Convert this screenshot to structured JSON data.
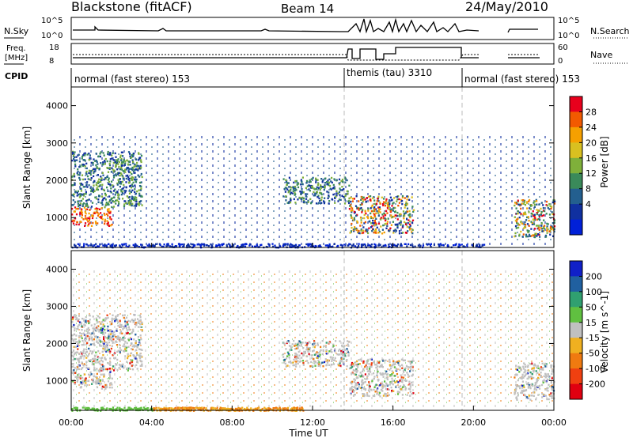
{
  "header": {
    "station": "Blackstone (fitACF)",
    "beam": "Beam 14",
    "date": "24/May/2010"
  },
  "top_panels": {
    "nsky_label": "N.Sky",
    "nsearch_label": "N.Search",
    "nsky_ticks": [
      "10^5",
      "10^0"
    ],
    "nsearch_ticks": [
      "10^5",
      "10^0"
    ],
    "freq_label_1": "Freq.",
    "freq_label_2": "[MHz]",
    "freq_ticks": [
      "18",
      "8"
    ],
    "nave_label": "Nave",
    "nave_ticks": [
      "60",
      "0"
    ],
    "cpid_label": "CPID",
    "cpid_segments": [
      {
        "text": "normal (fast stereo) 153",
        "start_hour": 0.0
      },
      {
        "text": "themis (tau) 3310",
        "start_hour": 13.8
      },
      {
        "text": "normal (fast stereo) 153",
        "start_hour": 19.8
      }
    ]
  },
  "power_colorbar": {
    "label": "Power [dB]",
    "ticks": [
      "28",
      "24",
      "20",
      "16",
      "12",
      "8",
      "4"
    ],
    "colors": [
      "#e8001c",
      "#f25a00",
      "#f6a000",
      "#d9c020",
      "#7fb03a",
      "#3a8a5a",
      "#235f8f",
      "#1030a0",
      "#0020d8"
    ]
  },
  "velocity_colorbar": {
    "label": "Velocity [m s^-1]",
    "ticks": [
      "200",
      "100",
      "50",
      "15",
      "-15",
      "-50",
      "-100",
      "-200"
    ],
    "colors": [
      "#1020c8",
      "#2060a0",
      "#30a070",
      "#60c040",
      "#c0c0c0",
      "#f0b020",
      "#f07a10",
      "#f04010",
      "#e00010"
    ]
  },
  "chart_data": [
    {
      "type": "heatmap",
      "name": "power",
      "xlabel": "",
      "ylabel": "Slant Range [km]",
      "yticks": [
        "1000",
        "2000",
        "3000",
        "4000"
      ],
      "ylim": [
        200,
        4500
      ],
      "xlim": [
        0,
        24
      ],
      "themis_window_hours": [
        13.8,
        19.8
      ],
      "regions": [
        {
          "t0": 0.0,
          "t1": 2.0,
          "r0": 800,
          "r1": 1300,
          "level": "high"
        },
        {
          "t0": 0.0,
          "t1": 3.5,
          "r0": 1300,
          "r1": 2800,
          "level": "mid"
        },
        {
          "t0": 10.5,
          "t1": 13.8,
          "r0": 1400,
          "r1": 2100,
          "level": "mid"
        },
        {
          "t0": 13.8,
          "t1": 17.0,
          "r0": 600,
          "r1": 1600,
          "level": "mixed"
        },
        {
          "t0": 22.0,
          "t1": 24.0,
          "r0": 500,
          "r1": 1500,
          "level": "mixed"
        }
      ]
    },
    {
      "type": "heatmap",
      "name": "velocity",
      "xlabel": "Time UT",
      "ylabel": "Slant Range [km]",
      "xticks": [
        "00:00",
        "04:00",
        "08:00",
        "12:00",
        "16:00",
        "20:00",
        "00:00"
      ],
      "yticks": [
        "1000",
        "2000",
        "3000",
        "4000"
      ],
      "ylim": [
        200,
        4500
      ],
      "xlim": [
        0,
        24
      ]
    }
  ]
}
